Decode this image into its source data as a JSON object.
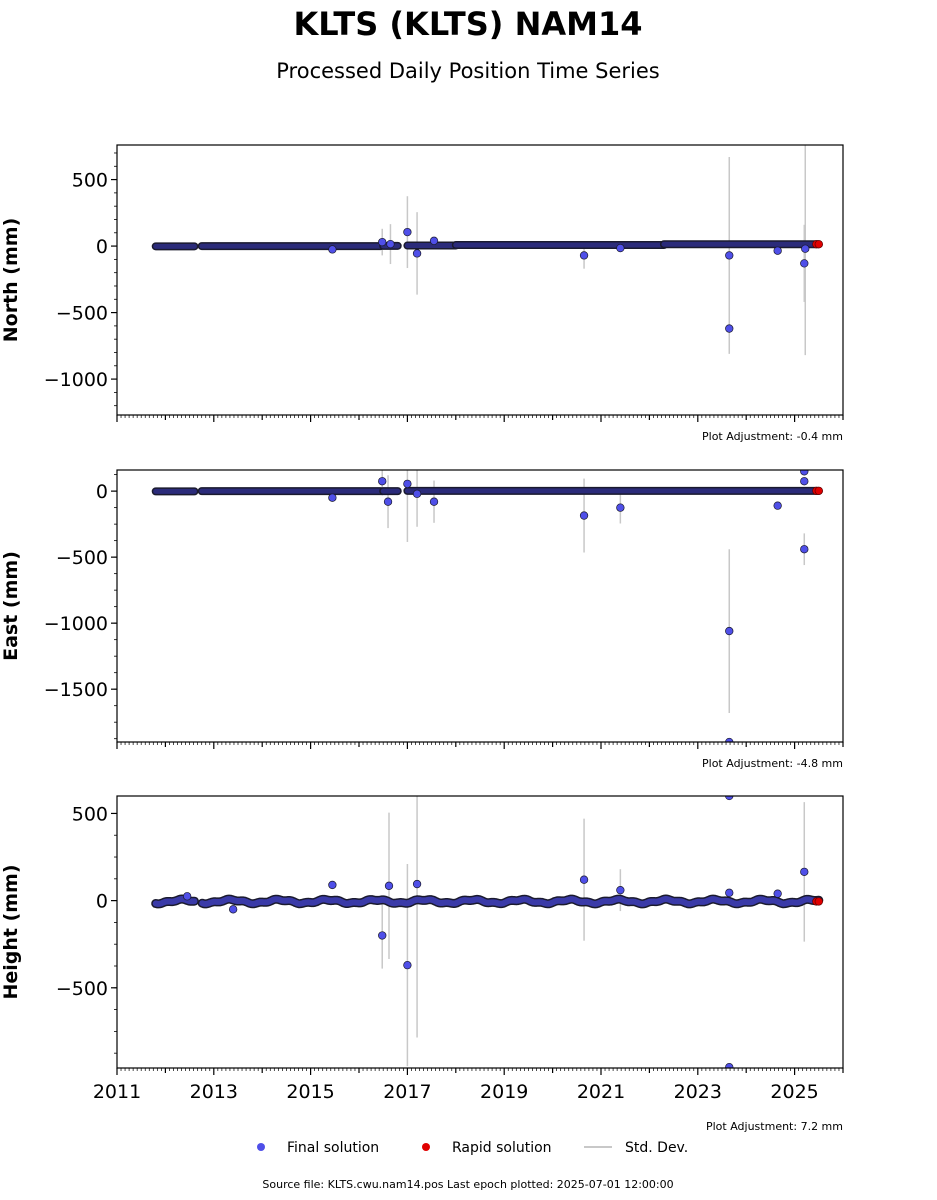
{
  "header": {
    "title": "KLTS (KLTS) NAM14",
    "subtitle": "Processed Daily Position Time Series"
  },
  "legend": {
    "final": "Final solution",
    "rapid": "Rapid solution",
    "stddev": "Std. Dev."
  },
  "footer": {
    "source": "Source file: KLTS.cwu.nam14.pos  Last epoch plotted: 2025-07-01 12:00:00"
  },
  "colors": {
    "final": "#4f4fe8",
    "final_edge": "#1a1a2e",
    "rapid": "#e00000",
    "stddev": "#c8c8c8",
    "axis": "#000000"
  },
  "chart_data": [
    {
      "type": "scatter",
      "panel": "north",
      "ylabel": "North (mm)",
      "adjustment": "Plot Adjustment: -0.4 mm",
      "xlim": [
        2011.0,
        2026.0
      ],
      "ylim": [
        -1270,
        760
      ],
      "yticks": [
        500,
        0,
        -500,
        -1000
      ],
      "ytick_labels": [
        "500",
        "0",
        "−500",
        "−1000"
      ],
      "yminor_step": 100,
      "segments": [
        {
          "x0": 2011.8,
          "x1": 2012.6,
          "y": -2
        },
        {
          "x0": 2012.75,
          "x1": 2016.45,
          "y": 0
        },
        {
          "x0": 2016.5,
          "x1": 2016.8,
          "y": 2
        },
        {
          "x0": 2017.0,
          "x1": 2018.0,
          "y": 4
        },
        {
          "x0": 2018.0,
          "x1": 2022.3,
          "y": 8
        },
        {
          "x0": 2022.3,
          "x1": 2025.5,
          "y": 14
        }
      ],
      "outliers": [
        {
          "x": 2015.45,
          "y": -25,
          "err": 0
        },
        {
          "x": 2016.48,
          "y": 30,
          "err": 100
        },
        {
          "x": 2016.65,
          "y": 15,
          "err": 150
        },
        {
          "x": 2017.0,
          "y": 105,
          "err": 270
        },
        {
          "x": 2017.2,
          "y": -55,
          "err": 310
        },
        {
          "x": 2017.55,
          "y": 40,
          "err": 0
        },
        {
          "x": 2020.65,
          "y": -70,
          "err": 100
        },
        {
          "x": 2021.4,
          "y": -15,
          "err": 0
        },
        {
          "x": 2023.65,
          "y": -70,
          "err": 740
        },
        {
          "x": 2023.65,
          "y": -620,
          "err": 170
        },
        {
          "x": 2024.65,
          "y": -35,
          "err": 0
        },
        {
          "x": 2025.2,
          "y": -130,
          "err": 290
        },
        {
          "x": 2025.22,
          "y": -20,
          "err": 800
        }
      ],
      "rapid": [
        {
          "x": 2025.45,
          "y": 14
        },
        {
          "x": 2025.5,
          "y": 14
        }
      ]
    },
    {
      "type": "scatter",
      "panel": "east",
      "ylabel": "East (mm)",
      "adjustment": "Plot Adjustment: -4.8 mm",
      "xlim": [
        2011.0,
        2026.0
      ],
      "ylim": [
        -1900,
        160
      ],
      "yticks": [
        0,
        -500,
        -1000,
        -1500
      ],
      "ytick_labels": [
        "0",
        "−500",
        "−1000",
        "−1500"
      ],
      "yminor_step": 125,
      "segments": [
        {
          "x0": 2011.8,
          "x1": 2012.6,
          "y": -2
        },
        {
          "x0": 2012.75,
          "x1": 2016.45,
          "y": 0
        },
        {
          "x0": 2016.5,
          "x1": 2016.8,
          "y": 0
        },
        {
          "x0": 2017.0,
          "x1": 2025.5,
          "y": 2
        }
      ],
      "outliers": [
        {
          "x": 2015.45,
          "y": -50,
          "err": 0
        },
        {
          "x": 2016.48,
          "y": 75,
          "err": 110
        },
        {
          "x": 2016.6,
          "y": -80,
          "err": 200
        },
        {
          "x": 2017.0,
          "y": 55,
          "err": 440
        },
        {
          "x": 2017.2,
          "y": -20,
          "err": 250
        },
        {
          "x": 2017.55,
          "y": -80,
          "err": 160
        },
        {
          "x": 2020.65,
          "y": -185,
          "err": 280
        },
        {
          "x": 2021.4,
          "y": -125,
          "err": 120
        },
        {
          "x": 2023.65,
          "y": -1060,
          "err": 620
        },
        {
          "x": 2023.65,
          "y": -1900,
          "err": 0
        },
        {
          "x": 2024.65,
          "y": -110,
          "err": 0
        },
        {
          "x": 2025.2,
          "y": 150,
          "err": 0
        },
        {
          "x": 2025.2,
          "y": 75,
          "err": 0
        },
        {
          "x": 2025.2,
          "y": -440,
          "err": 120
        }
      ],
      "rapid": [
        {
          "x": 2025.45,
          "y": 2
        },
        {
          "x": 2025.5,
          "y": 2
        }
      ]
    },
    {
      "type": "scatter",
      "panel": "height",
      "ylabel": "Height (mm)",
      "adjustment": "Plot Adjustment: 7.2 mm",
      "xlim": [
        2011.0,
        2026.0
      ],
      "ylim": [
        -960,
        600
      ],
      "yticks": [
        500,
        0,
        -500
      ],
      "ytick_labels": [
        "500",
        "0",
        "−500"
      ],
      "yminor_step": 125,
      "height_series": true,
      "series_range": [
        2011.8,
        2025.5
      ],
      "series_gap": [
        2012.6,
        2012.75
      ],
      "outliers": [
        {
          "x": 2012.45,
          "y": 25,
          "err": 0
        },
        {
          "x": 2013.4,
          "y": -50,
          "err": 0
        },
        {
          "x": 2015.45,
          "y": 90,
          "err": 0
        },
        {
          "x": 2016.48,
          "y": -200,
          "err": 190
        },
        {
          "x": 2016.62,
          "y": 85,
          "err": 420
        },
        {
          "x": 2017.0,
          "y": -370,
          "err": 580
        },
        {
          "x": 2017.2,
          "y": 95,
          "err": 880
        },
        {
          "x": 2020.65,
          "y": 120,
          "err": 350
        },
        {
          "x": 2021.4,
          "y": 60,
          "err": 120
        },
        {
          "x": 2023.65,
          "y": 600,
          "err": 0
        },
        {
          "x": 2023.65,
          "y": 45,
          "err": 0
        },
        {
          "x": 2023.65,
          "y": -955,
          "err": 0
        },
        {
          "x": 2024.65,
          "y": 40,
          "err": 0
        },
        {
          "x": 2025.2,
          "y": 165,
          "err": 400
        }
      ],
      "rapid": [
        {
          "x": 2025.45,
          "y": -5
        },
        {
          "x": 2025.5,
          "y": -5
        }
      ]
    }
  ],
  "x_axis": {
    "ticks": [
      2011,
      2013,
      2015,
      2017,
      2019,
      2021,
      2023,
      2025
    ],
    "tick_labels": [
      "2011",
      "2013",
      "2015",
      "2017",
      "2019",
      "2021",
      "2023",
      "2025"
    ]
  }
}
